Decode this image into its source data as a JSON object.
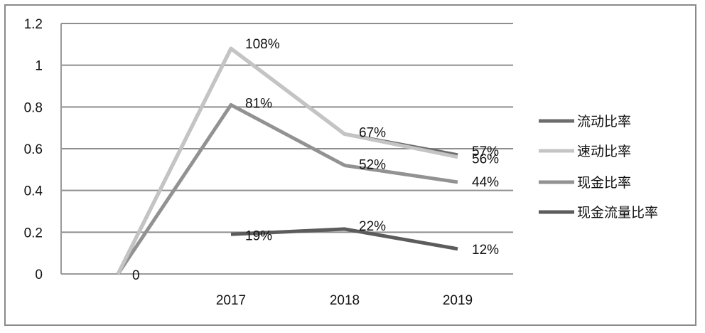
{
  "chart_data": {
    "type": "line",
    "categories": [
      "",
      "2017",
      "2018",
      "2019"
    ],
    "ylim": [
      0,
      1.2
    ],
    "yticks": [
      "0",
      "0.2",
      "0.4",
      "0.6",
      "0.8",
      "1",
      "1.2"
    ],
    "grid": true,
    "legend_position": "right",
    "series": [
      {
        "name": "流动比率",
        "color": "#6d6d6d",
        "values": [
          0,
          1.08,
          0.67,
          0.57
        ],
        "labels": [
          "0",
          "108%",
          "67%",
          "57%"
        ]
      },
      {
        "name": "速动比率",
        "color": "#c4c4c4",
        "values": [
          0,
          1.08,
          0.67,
          0.56
        ],
        "labels": [
          "",
          "",
          "",
          "56%"
        ]
      },
      {
        "name": "现金比率",
        "color": "#929292",
        "values": [
          0,
          0.81,
          0.52,
          0.44
        ],
        "labels": [
          "",
          "81%",
          "52%",
          "44%"
        ]
      },
      {
        "name": "现金流量比率",
        "color": "#5c5c5c",
        "values": [
          null,
          0.19,
          0.215,
          0.12
        ],
        "labels": [
          "",
          "19%",
          "22%",
          "12%"
        ]
      }
    ]
  }
}
